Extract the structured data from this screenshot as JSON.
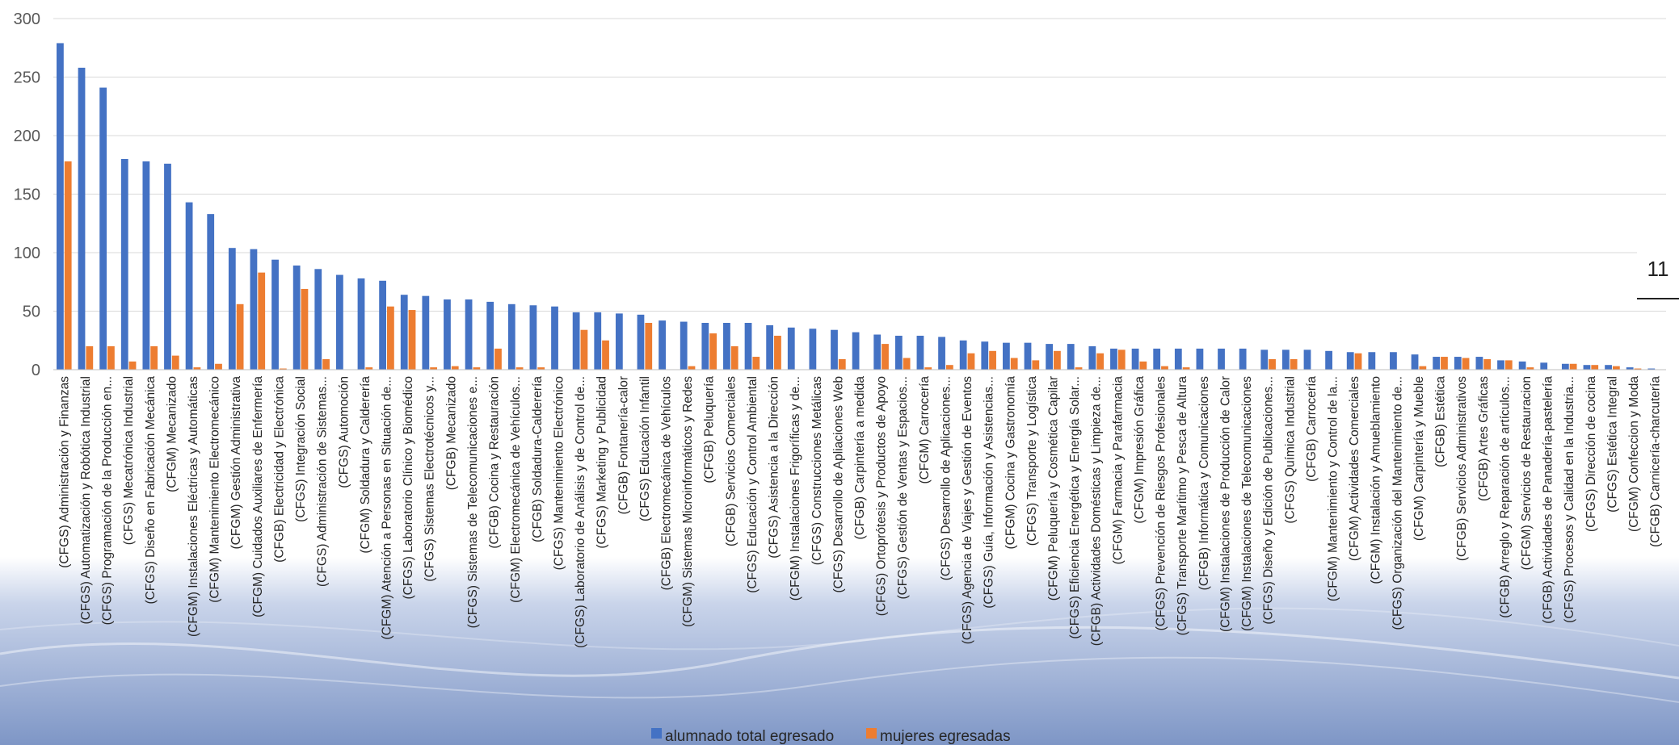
{
  "page_badge": "11",
  "colors": {
    "total": "#4472C4",
    "women": "#ED7D31",
    "grid": "#D9D9D9",
    "axis": "#BFBFBF",
    "bg_wave": "#7E96C6"
  },
  "chart_data": {
    "type": "bar",
    "ylim": [
      0,
      300
    ],
    "yticks": [
      0,
      50,
      100,
      150,
      200,
      250,
      300
    ],
    "grid": true,
    "legend_position": "bottom",
    "categories": [
      "(CFGS) Administración y Finanzas",
      "(CFGS) Automatización y Robótica Industrial",
      "(CFGS) Programación de la Producción en...",
      "(CFGS) Mecatrónica Industrial",
      "(CFGS) Diseño en Fabricación Mecánica",
      "(CFGM) Mecanizado",
      "(CFGM) Instalaciones Eléctricas y Automáticas",
      "(CFGM) Mantenimiento Electromecánico",
      "(CFGM) Gestión Administrativa",
      "(CFGM) Cuidados Auxiliares de Enfermería",
      "(CFGB) Electricidad y Electrónica",
      "(CFGS) Integración Social",
      "(CFGS) Administración de Sistemas...",
      "(CFGS) Automoción",
      "(CFGM) Soldadura y Calderería",
      "(CFGM) Atención a Personas en Situación de...",
      "(CFGS) Laboratorio Clínico y Biomédico",
      "(CFGS) Sistemas Electrotécnicos y...",
      "(CFGB) Mecanizado",
      "(CFGS) Sistemas de Telecomunicaciones e...",
      "(CFGB) Cocina y Restauración",
      "(CFGM) Electromecánica de Vehículos...",
      "(CFGB) Soldadura-Calderería",
      "(CFGS) Mantenimiento Electrónico",
      "(CFGS) Laboratorio de Análisis y de Control de...",
      "(CFGS) Marketing y Publicidad",
      "(CFGB) Fontanería-calor",
      "(CFGS) Educación Infantil",
      "(CFGB) Electromecánica de Vehículos",
      "(CFGM) Sistemas Microinformáticos y Redes",
      "(CFGB) Peluquería",
      "(CFGB) Servicios Comerciales",
      "(CFGS) Educación y Control Ambiental",
      "(CFGS) Asistencia a la Dirección",
      "(CFGM) Instalaciones Frigoríficas y de...",
      "(CFGS) Construcciones Metálicas",
      "(CFGS) Desarrollo de Apliaciones Web",
      "(CFGB) Carpintería a medida",
      "(CFGS) Ortoprótesis y Productos de Apoyo",
      "(CFGS) Gestión de Ventas y Espacios...",
      "(CFGM) Carrocería",
      "(CFGS) Desarrollo de Aplicaciones...",
      "(CFGS) Agencia de Viajes y Gestión de Eventos",
      "(CFGS) Guía, Información y Asistencias...",
      "(CFGM) Cocina y Gastronomía",
      "(CFGS) Transporte y Logística",
      "(CFGM) Peluquería y Cosmética Capilar",
      "(CFGS) Eficiencia Energética y Energía Solar...",
      "(CFGB) Actividades Domésticas y Limpieza de...",
      "(CFGM) Farmacia y Parafarmacia",
      "(CFGM) Impresión Gráfica",
      "(CFGS) Prevención de Riesgos Profesionales",
      "(CFGS) Transporte Marítimo y Pesca de Altura",
      "(CFGB) Informática y Comunicaciones",
      "(CFGM) Instalaciones de Producción de Calor",
      "(CFGM) Instalaciones de Telecomunicaciones",
      "(CFGS) Diseño y Edición de Publicaciones...",
      "(CFGS) Química Industrial",
      "(CFGB) Carrocería",
      "(CFGM) Mantenimiento y Control de la...",
      "(CFGM) Actividades Comerciales",
      "(CFGM) Instalación y Amueblamiento",
      "(CFGS) Organización del Mantenimiento de...",
      "(CFGM) Carpintería y Mueble",
      "(CFGB) Estética",
      "(CFGB) Servicios Administrativos",
      "(CFGB) Artes Gráficas",
      "(CFGB) Arreglo y Reparación de artículos...",
      "(CFGM) Servicios de Restauracion",
      "(CFGB) Actividades de Panadería-pastelería",
      "(CFGS) Procesos y Calidad en la Industria...",
      "(CFGS) Dirección de cocina",
      "(CFGS) Estética Integral",
      "(CFGM) Confeccion y Moda",
      "(CFGB) Carnicería-charcutería"
    ],
    "series": [
      {
        "name": "alumnado total egresado",
        "values": [
          279,
          258,
          241,
          180,
          178,
          176,
          143,
          133,
          104,
          103,
          94,
          89,
          86,
          81,
          78,
          76,
          64,
          63,
          60,
          60,
          58,
          56,
          55,
          54,
          49,
          49,
          48,
          47,
          42,
          41,
          40,
          40,
          40,
          38,
          36,
          35,
          34,
          32,
          30,
          29,
          29,
          28,
          25,
          24,
          23,
          23,
          22,
          22,
          20,
          18,
          18,
          18,
          18,
          18,
          18,
          18,
          17,
          17,
          17,
          16,
          15,
          15,
          15,
          13,
          11,
          11,
          11,
          8,
          7,
          6,
          5,
          4,
          4,
          2,
          1
        ]
      },
      {
        "name": "mujeres egresadas",
        "values": [
          178,
          20,
          20,
          7,
          20,
          12,
          2,
          5,
          56,
          83,
          1,
          69,
          9,
          0,
          2,
          54,
          51,
          2,
          3,
          2,
          18,
          2,
          2,
          0,
          34,
          25,
          0,
          40,
          0,
          3,
          31,
          20,
          11,
          29,
          0,
          0,
          9,
          0,
          22,
          10,
          2,
          4,
          14,
          16,
          10,
          8,
          16,
          2,
          14,
          17,
          7,
          3,
          2,
          0,
          0,
          0,
          9,
          9,
          0,
          0,
          14,
          0,
          0,
          3,
          11,
          10,
          9,
          8,
          2,
          0,
          5,
          4,
          3,
          1,
          0
        ]
      }
    ]
  }
}
